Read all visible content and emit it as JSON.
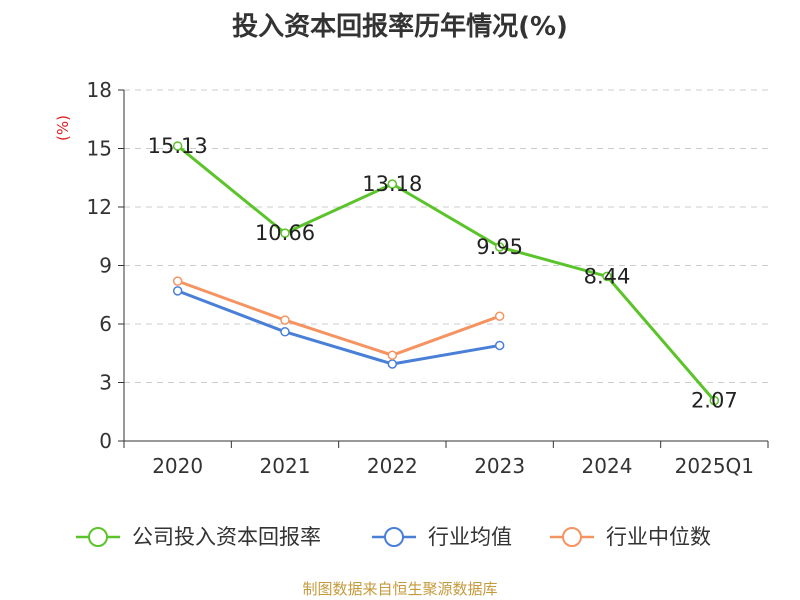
{
  "chart_data": {
    "type": "line",
    "title": "投入资本回报率历年情况(%)",
    "ylabel": "(%)",
    "xlabel": "",
    "categories": [
      "2020",
      "2021",
      "2022",
      "2023",
      "2024",
      "2025Q1"
    ],
    "ylim": [
      0,
      18
    ],
    "yticks": [
      0,
      3,
      6,
      9,
      12,
      15,
      18
    ],
    "grid": true,
    "legend_position": "bottom",
    "series": [
      {
        "name": "公司投入资本回报率",
        "color": "#5cc42b",
        "values": [
          15.13,
          10.66,
          13.18,
          9.95,
          8.44,
          2.07
        ],
        "labels": [
          "15.13",
          "10.66",
          "13.18",
          "9.95",
          "8.44",
          "2.07"
        ]
      },
      {
        "name": "行业均值",
        "color": "#4a7fd8",
        "values": [
          7.7,
          5.6,
          3.95,
          4.9,
          null,
          null
        ]
      },
      {
        "name": "行业中位数",
        "color": "#f59361",
        "values": [
          8.2,
          6.2,
          4.4,
          6.4,
          null,
          null
        ]
      }
    ]
  },
  "source": "制图数据来自恒生聚源数据库"
}
